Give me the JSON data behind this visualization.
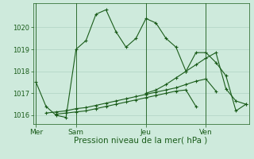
{
  "bg_color": "#ceeadc",
  "grid_color": "#a8ccbc",
  "line_color": "#1a5c1a",
  "marker": "+",
  "marker_size": 3,
  "marker_lw": 0.8,
  "line_width": 0.8,
  "title": "Pression niveau de la mer( hPa )",
  "title_fontsize": 7.5,
  "ylim": [
    1015.6,
    1021.1
  ],
  "yticks": [
    1016,
    1017,
    1018,
    1019,
    1020
  ],
  "ytick_fontsize": 6,
  "xtick_fontsize": 6.5,
  "day_labels": [
    "Mer",
    "Sam",
    "Jeu",
    "Ven"
  ],
  "day_positions": [
    0,
    4,
    11,
    17
  ],
  "xlim": [
    -0.3,
    21.3
  ],
  "series": [
    [
      1017.5,
      1016.4,
      1016.0,
      1015.9,
      1019.0,
      1019.4,
      1020.6,
      1020.8,
      1019.8,
      1019.1,
      1019.5,
      1020.4,
      1020.2,
      1019.5,
      1019.1,
      1018.0,
      1018.85,
      1018.85,
      1018.4,
      1017.8,
      1016.2,
      1016.5
    ],
    [
      1016.1,
      1016.15,
      1016.2,
      1016.3,
      1016.35,
      1016.45,
      1016.55,
      1016.65,
      1016.75,
      1016.85,
      1016.95,
      1017.05,
      1017.15,
      1017.25,
      1017.4,
      1017.55,
      1017.65,
      1017.1
    ],
    [
      1016.05,
      1016.1,
      1016.15,
      1016.2,
      1016.3,
      1016.4,
      1016.5,
      1016.6,
      1016.7,
      1016.8,
      1016.9,
      1017.0,
      1017.1,
      1017.15,
      1016.4
    ],
    [
      1017.0,
      1017.15,
      1017.4,
      1017.7,
      1018.0,
      1018.3,
      1018.6,
      1018.85,
      1017.2,
      1016.65,
      1016.5
    ]
  ],
  "series_x": [
    [
      0,
      1,
      2,
      3,
      4,
      5,
      6,
      7,
      8,
      9,
      10,
      11,
      12,
      13,
      14,
      15,
      16,
      17,
      18,
      19,
      20,
      21
    ],
    [
      1,
      2,
      3,
      4,
      5,
      6,
      7,
      8,
      9,
      10,
      11,
      12,
      13,
      14,
      15,
      16,
      17,
      18
    ],
    [
      2,
      3,
      4,
      5,
      6,
      7,
      8,
      9,
      10,
      11,
      12,
      13,
      14,
      15,
      16
    ],
    [
      11,
      12,
      13,
      14,
      15,
      16,
      17,
      18,
      19,
      20,
      21
    ]
  ]
}
